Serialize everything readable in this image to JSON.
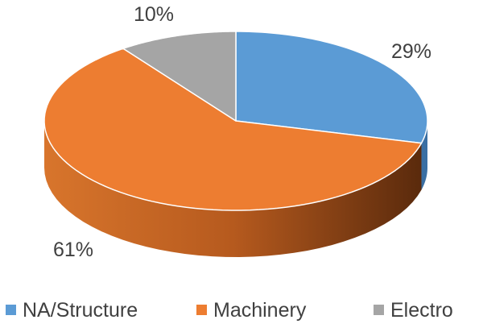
{
  "chart_data": {
    "type": "pie",
    "title": "",
    "three_d": true,
    "categories": [
      "NA/Structure",
      "Machinery",
      "Electro"
    ],
    "values": [
      29,
      61,
      10
    ],
    "labels": [
      "29%",
      "61%",
      "10%"
    ],
    "colors": [
      "#5b9bd5",
      "#ed7d31",
      "#a5a5a5"
    ],
    "side_colors": [
      "#3a6fa3",
      "#b4591f",
      "#7d7d7d"
    ],
    "legend_position": "bottom"
  }
}
